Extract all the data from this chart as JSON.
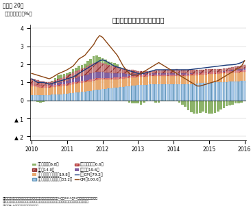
{
  "title": "消費者物価の推移（寄与度）",
  "subtitle_left": "（前年同月比、%）",
  "figure_label": "（図表 20）",
  "ylim": [
    -2.2,
    4.2
  ],
  "yticks": [
    -2,
    -1,
    0,
    1,
    2,
    3,
    4
  ],
  "ytick_labels": [
    "▲ 2",
    "▲ 1",
    "0",
    "1",
    "2",
    "3",
    "4"
  ],
  "colors": {
    "energy": "#8db36a",
    "food": "#c05050",
    "other_core_services": "#e8a96e",
    "shelter": "#a8c8e8",
    "medical_services": "#e08080",
    "core_goods": "#8060a0",
    "core_cpi_line": "#1a3a7a",
    "cpi_line": "#8b4513"
  },
  "n_months": 73,
  "energy": [
    -0.05,
    -0.05,
    -0.1,
    -0.12,
    -0.1,
    -0.05,
    0.0,
    0.05,
    0.12,
    0.18,
    0.18,
    0.15,
    0.12,
    0.12,
    0.18,
    0.18,
    0.22,
    0.22,
    0.22,
    0.28,
    0.32,
    0.38,
    0.38,
    0.32,
    0.28,
    0.22,
    0.18,
    0.18,
    0.18,
    0.12,
    0.05,
    0.0,
    -0.05,
    -0.12,
    -0.18,
    -0.18,
    -0.15,
    -0.22,
    -0.12,
    -0.05,
    0.0,
    -0.05,
    -0.12,
    -0.12,
    -0.05,
    -0.05,
    -0.05,
    -0.05,
    -0.05,
    -0.05,
    -0.12,
    -0.22,
    -0.35,
    -0.55,
    -0.65,
    -0.75,
    -0.72,
    -0.68,
    -0.62,
    -0.68,
    -0.75,
    -0.72,
    -0.68,
    -0.62,
    -0.52,
    -0.42,
    -0.32,
    -0.28,
    -0.22,
    -0.18,
    -0.18,
    -0.12,
    -0.05
  ],
  "food": [
    0.32,
    0.3,
    0.27,
    0.24,
    0.22,
    0.2,
    0.17,
    0.17,
    0.2,
    0.22,
    0.24,
    0.27,
    0.3,
    0.32,
    0.34,
    0.37,
    0.4,
    0.42,
    0.44,
    0.47,
    0.5,
    0.52,
    0.54,
    0.52,
    0.5,
    0.47,
    0.44,
    0.42,
    0.4,
    0.37,
    0.32,
    0.3,
    0.27,
    0.24,
    0.22,
    0.2,
    0.18,
    0.17,
    0.16,
    0.15,
    0.14,
    0.14,
    0.14,
    0.14,
    0.15,
    0.16,
    0.17,
    0.18,
    0.19,
    0.2,
    0.2,
    0.2,
    0.2,
    0.2,
    0.19,
    0.18,
    0.17,
    0.17,
    0.16,
    0.16,
    0.15,
    0.14,
    0.14,
    0.14,
    0.14,
    0.15,
    0.16,
    0.17,
    0.17,
    0.18,
    0.18,
    0.18,
    0.18
  ],
  "other_core_services": [
    0.5,
    0.48,
    0.45,
    0.43,
    0.42,
    0.42,
    0.42,
    0.42,
    0.43,
    0.44,
    0.44,
    0.45,
    0.46,
    0.47,
    0.48,
    0.49,
    0.5,
    0.5,
    0.51,
    0.52,
    0.53,
    0.55,
    0.56,
    0.55,
    0.54,
    0.52,
    0.5,
    0.48,
    0.47,
    0.46,
    0.45,
    0.45,
    0.45,
    0.45,
    0.45,
    0.45,
    0.45,
    0.45,
    0.45,
    0.45,
    0.45,
    0.45,
    0.45,
    0.45,
    0.45,
    0.45,
    0.45,
    0.45,
    0.45,
    0.45,
    0.45,
    0.45,
    0.45,
    0.45,
    0.46,
    0.46,
    0.46,
    0.46,
    0.47,
    0.47,
    0.47,
    0.47,
    0.48,
    0.48,
    0.48,
    0.48,
    0.48,
    0.48,
    0.49,
    0.49,
    0.49,
    0.49,
    0.5
  ],
  "shelter": [
    0.3,
    0.3,
    0.3,
    0.3,
    0.3,
    0.3,
    0.3,
    0.32,
    0.33,
    0.34,
    0.35,
    0.36,
    0.38,
    0.4,
    0.42,
    0.44,
    0.46,
    0.48,
    0.5,
    0.52,
    0.54,
    0.56,
    0.58,
    0.6,
    0.62,
    0.64,
    0.66,
    0.68,
    0.7,
    0.72,
    0.74,
    0.76,
    0.78,
    0.8,
    0.82,
    0.84,
    0.85,
    0.86,
    0.87,
    0.88,
    0.89,
    0.9,
    0.9,
    0.9,
    0.9,
    0.9,
    0.9,
    0.9,
    0.9,
    0.9,
    0.9,
    0.9,
    0.9,
    0.9,
    0.92,
    0.93,
    0.95,
    0.96,
    0.97,
    0.98,
    0.99,
    1.0,
    1.0,
    1.0,
    1.01,
    1.02,
    1.03,
    1.04,
    1.05,
    1.06,
    1.07,
    1.08,
    1.1
  ],
  "medical_services": [
    0.1,
    0.1,
    0.1,
    0.1,
    0.1,
    0.1,
    0.1,
    0.1,
    0.1,
    0.1,
    0.1,
    0.1,
    0.1,
    0.1,
    0.1,
    0.1,
    0.1,
    0.1,
    0.1,
    0.1,
    0.1,
    0.1,
    0.1,
    0.1,
    0.1,
    0.1,
    0.1,
    0.1,
    0.1,
    0.1,
    0.1,
    0.1,
    0.1,
    0.1,
    0.1,
    0.1,
    0.1,
    0.1,
    0.1,
    0.1,
    0.1,
    0.1,
    0.1,
    0.1,
    0.1,
    0.1,
    0.1,
    0.1,
    0.1,
    0.1,
    0.1,
    0.1,
    0.1,
    0.1,
    0.1,
    0.1,
    0.1,
    0.1,
    0.1,
    0.1,
    0.1,
    0.1,
    0.1,
    0.1,
    0.1,
    0.1,
    0.1,
    0.1,
    0.1,
    0.1,
    0.1,
    0.1,
    0.1
  ],
  "core_goods": [
    -0.05,
    -0.03,
    -0.02,
    -0.02,
    -0.01,
    0.0,
    0.02,
    0.05,
    0.08,
    0.1,
    0.12,
    0.14,
    0.16,
    0.18,
    0.2,
    0.22,
    0.24,
    0.26,
    0.28,
    0.3,
    0.32,
    0.33,
    0.34,
    0.33,
    0.32,
    0.3,
    0.28,
    0.26,
    0.24,
    0.22,
    0.2,
    0.18,
    0.15,
    0.12,
    0.1,
    0.08,
    0.06,
    0.05,
    0.04,
    0.04,
    0.04,
    0.05,
    0.06,
    0.07,
    0.07,
    0.07,
    0.07,
    0.07,
    0.07,
    0.07,
    0.06,
    0.05,
    0.04,
    0.03,
    0.02,
    0.01,
    0.01,
    0.01,
    0.01,
    0.01,
    0.01,
    0.01,
    0.01,
    0.01,
    0.01,
    0.01,
    0.02,
    0.03,
    0.04,
    0.05,
    0.06,
    0.07,
    0.08
  ],
  "core_cpi": [
    1.2,
    1.1,
    1.0,
    1.0,
    1.0,
    0.95,
    0.9,
    0.95,
    1.0,
    1.05,
    1.1,
    1.15,
    1.2,
    1.25,
    1.3,
    1.4,
    1.5,
    1.6,
    1.7,
    1.8,
    1.9,
    2.0,
    2.1,
    2.2,
    2.25,
    2.2,
    2.1,
    2.0,
    1.9,
    1.85,
    1.8,
    1.75,
    1.7,
    1.65,
    1.6,
    1.55,
    1.5,
    1.5,
    1.5,
    1.55,
    1.6,
    1.65,
    1.7,
    1.7,
    1.7,
    1.7,
    1.7,
    1.7,
    1.7,
    1.7,
    1.7,
    1.7,
    1.7,
    1.7,
    1.72,
    1.74,
    1.76,
    1.78,
    1.8,
    1.82,
    1.84,
    1.86,
    1.88,
    1.9,
    1.92,
    1.94,
    1.96,
    1.97,
    1.98,
    2.0,
    2.05,
    2.1,
    2.2
  ],
  "cpi": [
    1.5,
    1.45,
    1.4,
    1.35,
    1.3,
    1.25,
    1.2,
    1.28,
    1.38,
    1.48,
    1.55,
    1.62,
    1.7,
    1.8,
    1.9,
    2.1,
    2.3,
    2.4,
    2.5,
    2.7,
    2.9,
    3.1,
    3.4,
    3.6,
    3.5,
    3.3,
    3.1,
    2.9,
    2.7,
    2.5,
    2.2,
    1.9,
    1.7,
    1.5,
    1.4,
    1.4,
    1.4,
    1.5,
    1.6,
    1.7,
    1.8,
    1.9,
    2.0,
    2.1,
    2.0,
    1.9,
    1.8,
    1.7,
    1.6,
    1.5,
    1.4,
    1.3,
    1.2,
    1.1,
    1.0,
    0.9,
    0.8,
    0.8,
    0.85,
    0.9,
    0.95,
    1.0,
    1.05,
    1.1,
    1.2,
    1.3,
    1.4,
    1.5,
    1.6,
    1.7,
    1.8,
    1.9,
    2.2
  ],
  "legend_labels": {
    "energy": "エネルギー（6.8）",
    "food": "食料！14.0）",
    "other_core_services": "その他コアサービス（19.8）",
    "shelter": "家賣（帰属家賣含む）（33.2）",
    "medical": "医療サービス（6.6）",
    "core_goods": "コア財（19.6）",
    "core_cpi": "コアCPI（79.2）",
    "cpi": "CPI（100.0）"
  },
  "note1": "（注）原系列の前年同期比。カッコ内は総合指数に対するウエイト（%）で2015年12月の時点のもの。コアは",
  "note2": "エネルギー・食料を除く、コアサービスはエネルギーを除くサービス、コア財はエネルギー・食料を除く財",
  "note3": "（資料）BLSよりニッセイ基礎研究所作成"
}
